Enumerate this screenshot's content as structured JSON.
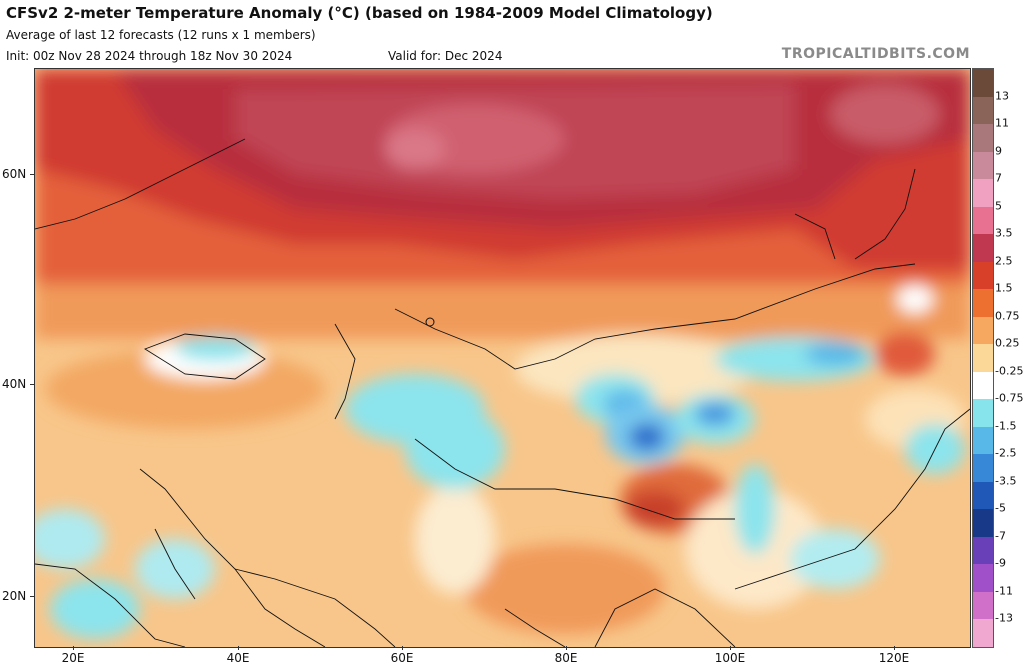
{
  "header": {
    "title": "CFSv2 2-meter Temperature Anomaly (°C) (based on 1984-2009 Model Climatology)",
    "subtitle": "Average of last 12 forecasts (12 runs x 1 members)",
    "init": "Init: 00z Nov 28 2024 through 18z Nov 30 2024",
    "valid": "Valid for: Dec 2024",
    "site": "TROPICALTIDBITS.COM"
  },
  "map": {
    "lat_labels": [
      "60N",
      "40N",
      "20N"
    ],
    "lon_labels": [
      "20E",
      "40E",
      "60E",
      "80E",
      "100E",
      "120E"
    ],
    "colorbar": {
      "labels": [
        "13",
        "11",
        "9",
        "7",
        "5",
        "3.5",
        "2.5",
        "1.5",
        "0.75",
        "0.25",
        "-0.25",
        "-0.75",
        "-1.5",
        "-2.5",
        "-3.5",
        "-5",
        "-7",
        "-9",
        "-11",
        "-13"
      ],
      "colors": [
        "#6b4a3a",
        "#8a6458",
        "#a8787a",
        "#c98a9c",
        "#f0a0c0",
        "#e87090",
        "#c03850",
        "#d8402a",
        "#ee7030",
        "#f6a860",
        "#fbd898",
        "#ffffff",
        "#88e4ec",
        "#58b8e8",
        "#3888d8",
        "#2058b8",
        "#183888",
        "#6a40b8",
        "#a050c8",
        "#d070c8",
        "#f0a8d0"
      ]
    }
  }
}
